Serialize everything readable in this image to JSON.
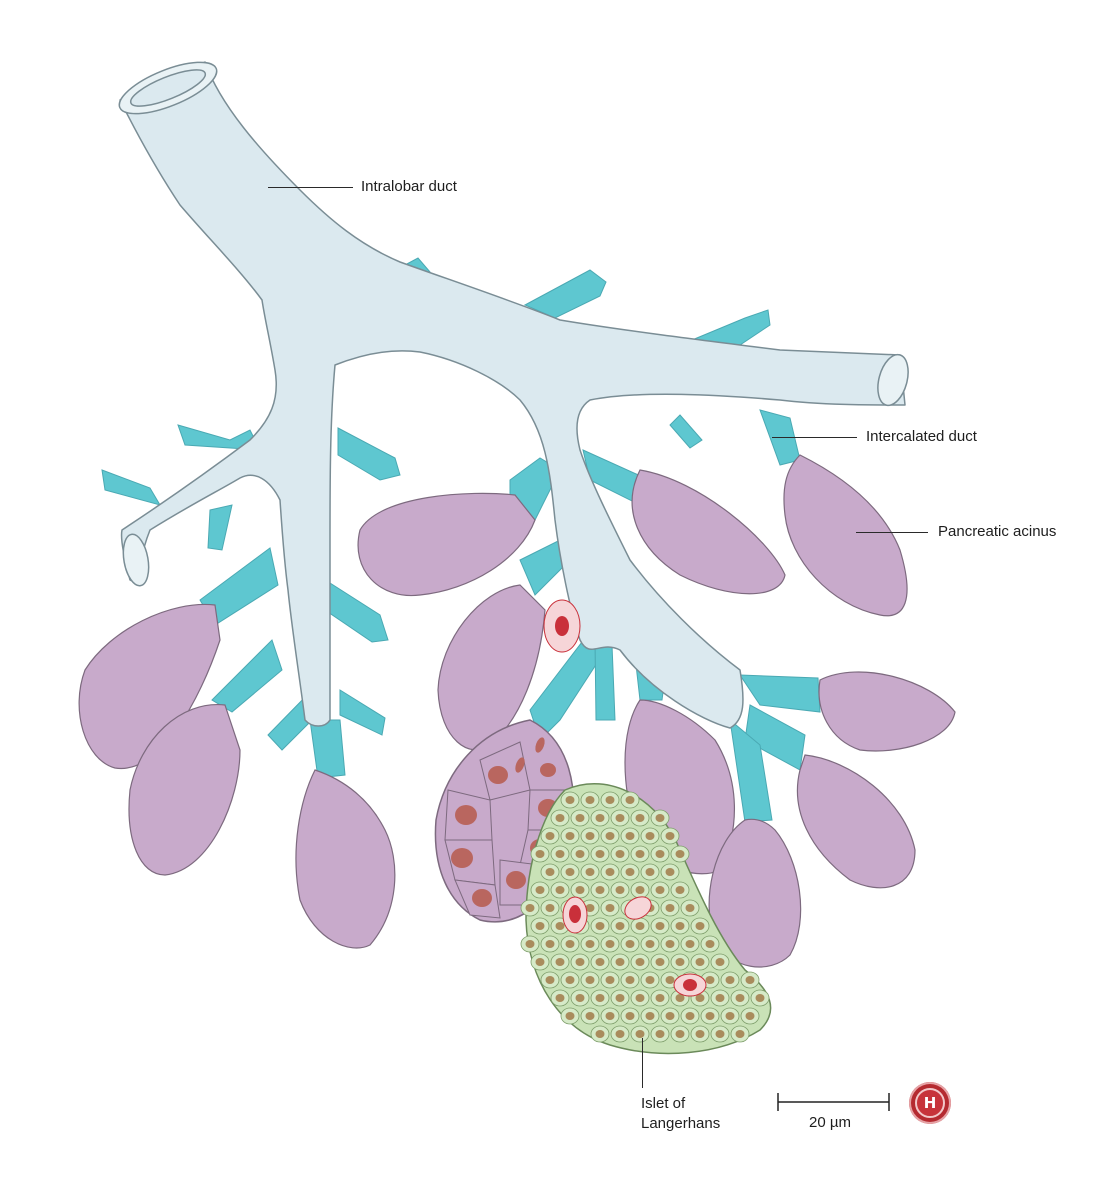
{
  "labels": {
    "intralobar_duct": "Intralobar duct",
    "intercalated_duct": "Intercalated duct",
    "pancreatic_acinus": "Pancreatic acinus",
    "islet_line1": "Islet of",
    "islet_line2": "Langerhans"
  },
  "scale_bar": {
    "label": "20 µm"
  },
  "logo": {
    "letter": "H"
  },
  "colors": {
    "duct_fill": "#dbe9ef",
    "duct_stroke": "#7a8d95",
    "intercalated": "#5ec7d0",
    "acinus": "#c8aacb",
    "acinus_stroke": "#7d6a7f",
    "islet_fill": "#c9e2b7",
    "islet_cell": "#a98c5d",
    "nucleus": "#b9665f",
    "vessel": "#c9303a"
  }
}
